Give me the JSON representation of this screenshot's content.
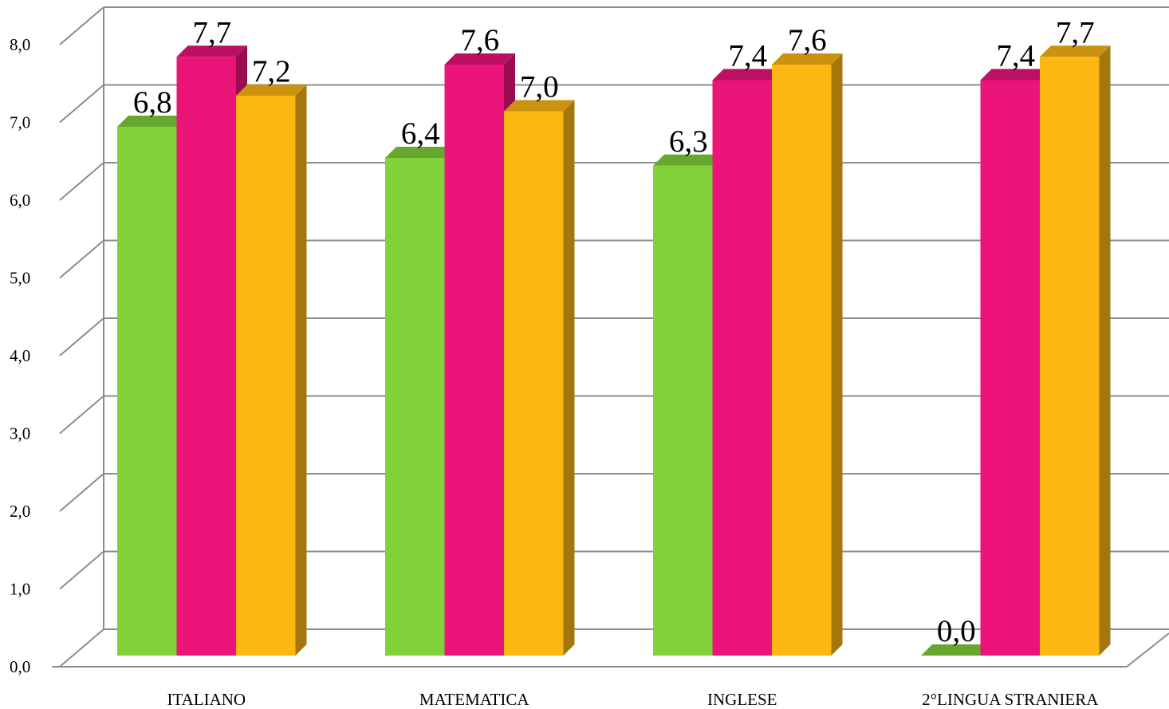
{
  "chart_data": {
    "type": "bar",
    "style": "3d-clustered-column",
    "categories": [
      "ITALIANO",
      "MATEMATICA",
      "INGLESE",
      "2°LINGUA STRANIERA"
    ],
    "series": [
      {
        "values": [
          6.8,
          6.4,
          6.3,
          0.0
        ],
        "color": "#80d13a",
        "label_text": [
          "6,8",
          "6,4",
          "6,3",
          "0,0"
        ]
      },
      {
        "values": [
          7.7,
          7.6,
          7.4,
          7.4
        ],
        "color": "#eb1478",
        "label_text": [
          "7,7",
          "7,6",
          "7,4",
          "7,4"
        ]
      },
      {
        "values": [
          7.2,
          7.0,
          7.6,
          7.7
        ],
        "color": "#fdb713",
        "label_text": [
          "7,2",
          "7,0",
          "7,6",
          "7,7"
        ]
      }
    ],
    "ylim": [
      0,
      8
    ],
    "yticks": [
      "0,0",
      "1,0",
      "2,0",
      "3,0",
      "4,0",
      "5,0",
      "6,0",
      "7,0",
      "8,0"
    ],
    "grid": true,
    "legend": false,
    "title": "",
    "xlabel": "",
    "ylabel": ""
  }
}
